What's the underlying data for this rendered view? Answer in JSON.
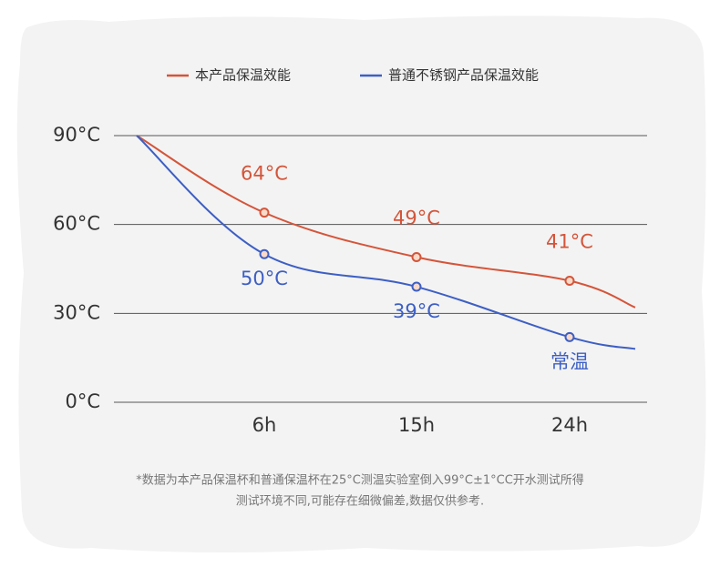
{
  "chart_data": {
    "type": "line",
    "categories": [
      null,
      "6h",
      "15h",
      "24h",
      null
    ],
    "series": [
      {
        "name": "本产品保温效能",
        "color": "#d4553a",
        "values": [
          90,
          64,
          49,
          41,
          32
        ],
        "value_labels": [
          null,
          "64°C",
          "49°C",
          "41°C",
          null
        ]
      },
      {
        "name": "普通不锈钢产品保温效能",
        "color": "#3d5fc4",
        "values": [
          90,
          50,
          39,
          22,
          18
        ],
        "value_labels": [
          null,
          "50°C",
          "39°C",
          "常温",
          null
        ]
      }
    ],
    "ylim": [
      0,
      90
    ],
    "yticks": [
      {
        "value": 0,
        "label": "0°C"
      },
      {
        "value": 30,
        "label": "30°C"
      },
      {
        "value": 60,
        "label": "60°C"
      },
      {
        "value": 90,
        "label": "90°C"
      }
    ],
    "grid": true,
    "legend": "top",
    "notes": [
      "*数据为本产品保温杯和普通保温杯在25°C测温实验室倒入99°C±1°CC开水测试所得",
      "测试环境不同,可能存在细微偏差,数据仅供参考."
    ]
  }
}
